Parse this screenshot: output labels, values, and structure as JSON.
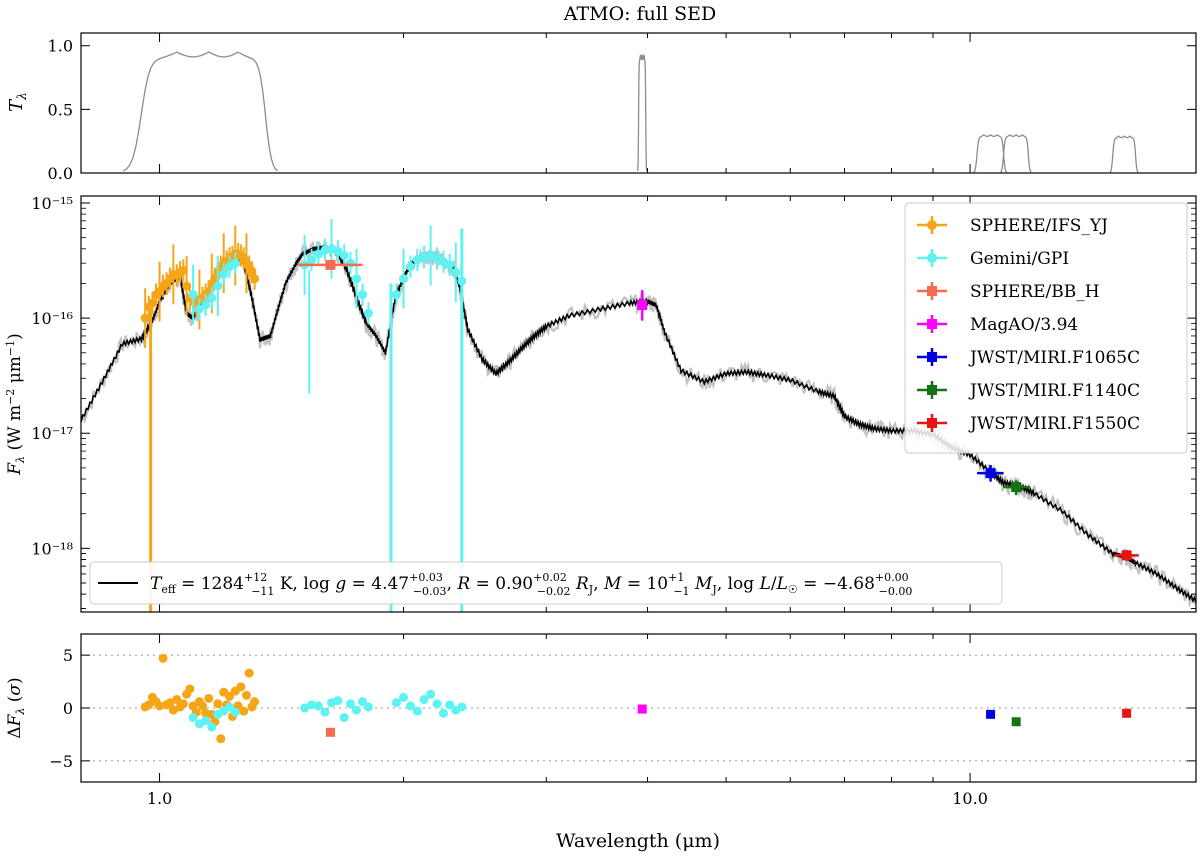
{
  "chart_data": [
    {
      "type": "line",
      "panel": "filters",
      "title": "ATMO: full SED",
      "ylabel": "T_λ",
      "xscale": "log",
      "xlim": [
        0.8,
        19.0
      ],
      "ylim": [
        0.0,
        1.1
      ],
      "yticks": [
        0.0,
        0.5,
        1.0
      ],
      "ytick_labels": [
        "0.0",
        "0.5",
        "1.0"
      ],
      "line_color": "#8c8c8c",
      "filters": [
        {
          "name": "SPHERE/IFS_YJ",
          "lo": 0.95,
          "hi": 1.35,
          "peak": 0.95
        },
        {
          "name": "MagAO/3.94",
          "lo": 3.9,
          "hi": 3.98,
          "peak": 0.93
        },
        {
          "name": "JWST/MIRI.F1065C",
          "lo": 10.2,
          "hi": 11.0,
          "peak": 0.3
        },
        {
          "name": "JWST/MIRI.F1140C",
          "lo": 11.0,
          "hi": 11.8,
          "peak": 0.3
        },
        {
          "name": "JWST/MIRI.F1550C",
          "lo": 15.0,
          "hi": 16.0,
          "peak": 0.29
        }
      ]
    },
    {
      "type": "scatter",
      "panel": "sed",
      "ylabel": "F_λ (W m⁻² μm⁻¹)",
      "xscale": "log",
      "yscale": "log",
      "xlim": [
        0.8,
        19.0
      ],
      "ylim": [
        2.8e-19,
        1.15e-15
      ],
      "ytick_labels": [
        "10⁻¹⁵",
        "10⁻¹⁶",
        "10⁻¹⁷",
        "10⁻¹⁸"
      ],
      "model": {
        "label": "T_eff = 1284⁺¹²₋₁₁ K, log g = 4.47⁺⁰·⁰³₋₀.₀₃, R = 0.90⁺⁰·⁰²₋₀.₀₂ R_J, M = 10⁺¹₋₁ M_J, log L/L☉ = −4.68⁺⁰·⁰⁰₋₀.₀₀",
        "label_parts": {
          "teff": "1284",
          "teff_up": "+12",
          "teff_lo": "−11",
          "logg": "4.47",
          "logg_up": "+0.03",
          "logg_lo": "−0.03",
          "radius": "0.90",
          "radius_up": "+0.02",
          "radius_lo": "−0.02",
          "mass": "10",
          "mass_up": "+1",
          "mass_lo": "−1",
          "logl": "−4.68",
          "logl_up": "+0.00",
          "logl_lo": "−0.00"
        },
        "x": [
          0.8,
          0.85,
          0.9,
          0.95,
          0.98,
          1.0,
          1.03,
          1.06,
          1.08,
          1.1,
          1.13,
          1.17,
          1.2,
          1.24,
          1.27,
          1.3,
          1.33,
          1.37,
          1.4,
          1.43,
          1.47,
          1.5,
          1.55,
          1.6,
          1.65,
          1.7,
          1.75,
          1.8,
          1.85,
          1.9,
          1.95,
          2.0,
          2.05,
          2.1,
          2.15,
          2.2,
          2.25,
          2.3,
          2.35,
          2.4,
          2.5,
          2.6,
          2.7,
          2.8,
          2.9,
          3.0,
          3.2,
          3.5,
          3.8,
          4.0,
          4.1,
          4.2,
          4.4,
          4.7,
          5.0,
          5.3,
          5.6,
          6.0,
          6.5,
          6.8,
          7.0,
          7.3,
          7.6,
          8.0,
          8.5,
          9.0,
          9.5,
          10.0,
          10.6,
          11.0,
          11.5,
          12.0,
          13.0,
          14.0,
          15.0,
          15.5,
          16.0,
          17.0,
          18.0,
          19.0
        ],
        "y": [
          1.3e-17,
          2.8e-17,
          6e-17,
          6.6e-17,
          9.5e-17,
          1.4e-16,
          2e-16,
          2.3e-16,
          1.1e-16,
          1e-16,
          1.4e-16,
          2.2e-16,
          3e-16,
          3.6e-16,
          3e-16,
          1.5e-16,
          6.5e-17,
          7e-17,
          1.2e-16,
          2e-16,
          2.9e-16,
          3.6e-16,
          4e-16,
          4.1e-16,
          3.8e-16,
          2.7e-16,
          1.5e-16,
          9e-17,
          7e-17,
          5e-17,
          1.4e-16,
          2.3e-16,
          3e-16,
          3.4e-16,
          3.6e-16,
          3.4e-16,
          3e-16,
          2.8e-16,
          1.8e-16,
          8e-17,
          4.4e-17,
          3.3e-17,
          4.2e-17,
          5.5e-17,
          7e-17,
          8.5e-17,
          1.05e-16,
          1.2e-16,
          1.35e-16,
          1.4e-16,
          1.3e-16,
          7.5e-17,
          3.5e-17,
          2.8e-17,
          3.3e-17,
          3.4e-17,
          3.2e-17,
          2.9e-17,
          2.3e-17,
          2.1e-17,
          1.4e-17,
          1.2e-17,
          1.1e-17,
          1.05e-17,
          1.05e-17,
          9.8e-18,
          7.5e-18,
          6.5e-18,
          4.6e-18,
          3.7e-18,
          3.5e-18,
          3e-18,
          2.1e-18,
          1.3e-18,
          9e-19,
          8.5e-19,
          7.5e-19,
          6e-19,
          4.5e-19,
          3.5e-19
        ]
      },
      "series": [
        {
          "name": "SPHERE/IFS_YJ",
          "color": "#f5a516",
          "marker": "circle",
          "x": [
            0.96,
            0.97,
            0.98,
            0.99,
            1.0,
            1.01,
            1.02,
            1.03,
            1.04,
            1.05,
            1.06,
            1.07,
            1.08,
            1.09,
            1.1,
            1.11,
            1.12,
            1.13,
            1.14,
            1.15,
            1.16,
            1.17,
            1.18,
            1.19,
            1.2,
            1.21,
            1.22,
            1.23,
            1.24,
            1.25,
            1.26,
            1.27,
            1.28,
            1.29,
            1.3,
            1.31
          ],
          "y": [
            1e-16,
            1.25e-16,
            1.35e-16,
            1.6e-16,
            1.7e-16,
            1.9e-16,
            2e-16,
            2.2e-16,
            2.4e-16,
            2.35e-16,
            2.5e-16,
            2.6e-16,
            1.9e-16,
            1.5e-16,
            1.4e-16,
            1.3e-16,
            1.45e-16,
            1.5e-16,
            1.6e-16,
            1.7e-16,
            2e-16,
            2.2e-16,
            2.5e-16,
            2.8e-16,
            3e-16,
            3.1e-16,
            3.3e-16,
            3.4e-16,
            3.5e-16,
            3.6e-16,
            3.5e-16,
            3.3e-16,
            3e-16,
            2.8e-16,
            2.5e-16,
            2.2e-16
          ],
          "residuals": [
            0.1,
            0.3,
            1.0,
            0.6,
            0.2,
            4.7,
            0.3,
            0.5,
            -0.2,
            0.8,
            0.1,
            0.4,
            1.3,
            1.8,
            0.2,
            -0.4,
            0.6,
            0.2,
            -0.5,
            0.9,
            -0.6,
            -1.3,
            0.4,
            -2.9,
            1.5,
            0.3,
            1.1,
            -0.8,
            1.6,
            0.2,
            2.0,
            -0.3,
            1.2,
            3.3,
            0.1,
            0.6
          ]
        },
        {
          "name": "Gemini/GPI",
          "color": "#5ef2f2",
          "marker": "circle",
          "x": [
            1.1,
            1.12,
            1.14,
            1.16,
            1.18,
            1.2,
            1.22,
            1.24,
            1.51,
            1.54,
            1.57,
            1.6,
            1.63,
            1.66,
            1.69,
            1.72,
            1.75,
            1.78,
            1.81,
            1.96,
            2.0,
            2.04,
            2.08,
            2.12,
            2.16,
            2.2,
            2.24,
            2.28,
            2.32,
            2.36
          ],
          "y": [
            1.6e-16,
            1.2e-16,
            1.3e-16,
            1.5e-16,
            1.9e-16,
            2.4e-16,
            2.8e-16,
            3e-16,
            2.9e-16,
            3.2e-16,
            3.6e-16,
            3.9e-16,
            4e-16,
            3.8e-16,
            3.5e-16,
            3e-16,
            2.2e-16,
            1.6e-16,
            1.1e-16,
            1.6e-16,
            2.2e-16,
            2.8e-16,
            3.2e-16,
            3.4e-16,
            3.5e-16,
            3.3e-16,
            3.1e-16,
            2.9e-16,
            2.5e-16,
            2.1e-16
          ],
          "residuals": [
            -0.9,
            -1.5,
            -1.2,
            -1.8,
            -0.6,
            -0.3,
            0.1,
            -0.4,
            0.0,
            0.3,
            0.2,
            -0.4,
            0.5,
            0.7,
            -0.9,
            0.4,
            -0.2,
            0.6,
            0.1,
            0.5,
            1.0,
            0.2,
            -0.3,
            0.8,
            1.3,
            0.4,
            -0.5,
            0.3,
            -0.2,
            0.1
          ]
        },
        {
          "name": "SPHERE/BB_H",
          "color": "#f76a4d",
          "marker": "square",
          "x": [
            1.625
          ],
          "xerr_range": [
            [
              1.48,
              1.78
            ]
          ],
          "y": [
            2.9e-16
          ],
          "residuals": [
            -2.3
          ]
        },
        {
          "name": "MagAO/3.94",
          "color": "#ff00ff",
          "marker": "square",
          "x": [
            3.94
          ],
          "y": [
            1.3e-16
          ],
          "yerr_range": [
            [
              9.5e-17,
              1.75e-16
            ]
          ],
          "residuals": [
            -0.1
          ]
        },
        {
          "name": "JWST/MIRI.F1065C",
          "color": "#0000e0",
          "marker": "square",
          "x": [
            10.6
          ],
          "xerr_range": [
            [
              10.2,
              11.0
            ]
          ],
          "y": [
            4.5e-18
          ],
          "yerr_range": [
            [
              3.8e-18,
              5.3e-18
            ]
          ],
          "residuals": [
            -0.6
          ]
        },
        {
          "name": "JWST/MIRI.F1140C",
          "color": "#127512",
          "marker": "square",
          "x": [
            11.4
          ],
          "xerr_range": [
            [
              11.0,
              11.85
            ]
          ],
          "y": [
            3.4e-18
          ],
          "yerr_range": [
            [
              2.9e-18,
              3.9e-18
            ]
          ],
          "residuals": [
            -1.3
          ]
        },
        {
          "name": "JWST/MIRI.F1550C",
          "color": "#e81414",
          "marker": "square",
          "x": [
            15.6
          ],
          "xerr_range": [
            [
              15.05,
              16.15
            ]
          ],
          "y": [
            8.7e-19
          ],
          "yerr_range": [
            [
              7.8e-19,
              9.7e-19
            ]
          ],
          "residuals": [
            -0.5
          ]
        }
      ],
      "legend_position": "upper right"
    },
    {
      "type": "scatter",
      "panel": "residuals",
      "ylabel": "ΔF_λ (σ)",
      "xlabel": "Wavelength (μm)",
      "xscale": "log",
      "xlim": [
        0.8,
        19.0
      ],
      "ylim": [
        -7.0,
        7.0
      ],
      "yticks": [
        -5,
        0,
        5
      ],
      "ytick_labels": [
        "−5",
        "0",
        "5"
      ],
      "xtick_labels": [
        "1.0",
        "10.0"
      ],
      "grid": "dotted lines at −5, 0, 5"
    }
  ]
}
